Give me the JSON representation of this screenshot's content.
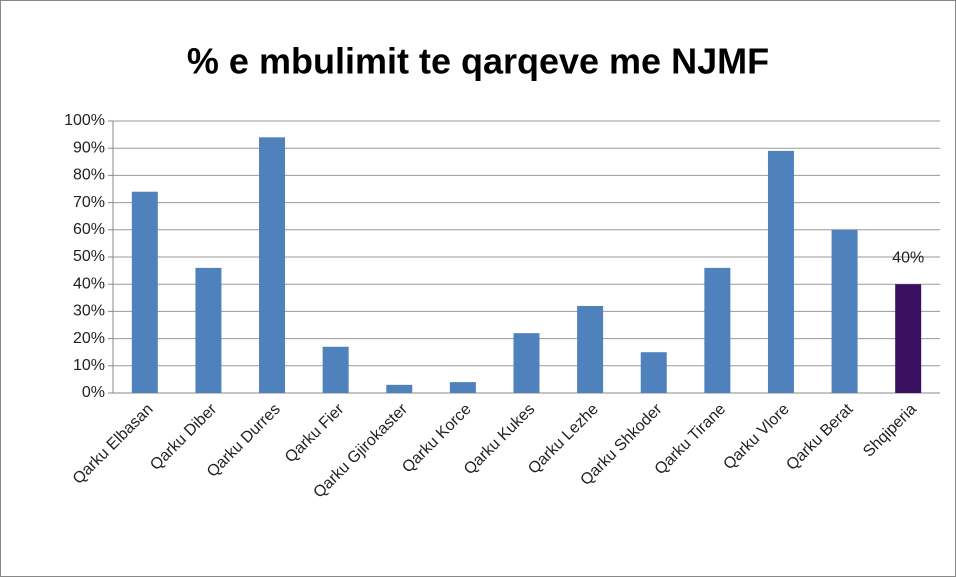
{
  "chart_data": {
    "type": "bar",
    "title": "% e mbulimit te qarqeve me NJMF",
    "categories": [
      "Qarku Elbasan",
      "Qarku Diber",
      "Qarku Durres",
      "Qarku Fier",
      "Qarku Gjirokaster",
      "Qarku Korce",
      "Qarku Kukes",
      "Qarku Lezhe",
      "Qarku Shkoder",
      "Qarku Tirane",
      "Qarku Vlore",
      "Qarku Berat",
      "Shqiperia"
    ],
    "values": [
      74,
      46,
      94,
      17,
      3,
      4,
      22,
      32,
      15,
      46,
      89,
      60,
      40
    ],
    "value_labels": [
      null,
      null,
      null,
      null,
      null,
      null,
      null,
      null,
      null,
      null,
      null,
      null,
      "40%"
    ],
    "colors": [
      "#4f81bd",
      "#4f81bd",
      "#4f81bd",
      "#4f81bd",
      "#4f81bd",
      "#4f81bd",
      "#4f81bd",
      "#4f81bd",
      "#4f81bd",
      "#4f81bd",
      "#4f81bd",
      "#4f81bd",
      "#3b1060"
    ],
    "ylim": [
      0,
      100
    ],
    "yticks": [
      {
        "value": 0,
        "label": "0%"
      },
      {
        "value": 10,
        "label": "10%"
      },
      {
        "value": 20,
        "label": "20%"
      },
      {
        "value": 30,
        "label": "30%"
      },
      {
        "value": 40,
        "label": "40%"
      },
      {
        "value": 50,
        "label": "50%"
      },
      {
        "value": 60,
        "label": "60%"
      },
      {
        "value": 70,
        "label": "70%"
      },
      {
        "value": 80,
        "label": "80%"
      },
      {
        "value": 90,
        "label": "90%"
      },
      {
        "value": 100,
        "label": "100%"
      }
    ],
    "grid": true
  }
}
